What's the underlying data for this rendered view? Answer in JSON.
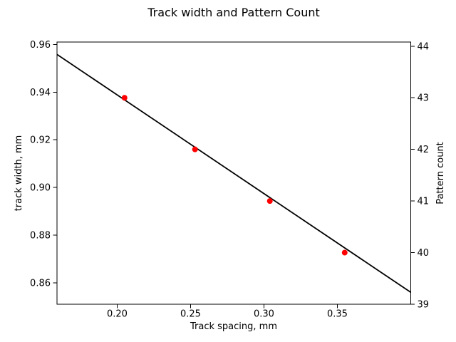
{
  "figure": {
    "background": "#ffffff"
  },
  "chart_data": {
    "type": "line",
    "title": "Track width and Pattern Count",
    "xlabel": "Track spacing, mm",
    "ylabel_left": "track width, mm",
    "ylabel_right": "Pattern count",
    "xlim": [
      0.159,
      0.4
    ],
    "ylim_left": [
      0.851,
      0.961
    ],
    "ylim_right": [
      39.0,
      44.08
    ],
    "x_ticks": [
      0.2,
      0.25,
      0.3,
      0.35
    ],
    "x_tick_labels": [
      "0.20",
      "0.25",
      "0.30",
      "0.35"
    ],
    "y_ticks_left": [
      0.86,
      0.88,
      0.9,
      0.92,
      0.94,
      0.96
    ],
    "y_tick_labels_left": [
      "0.86",
      "0.88",
      "0.90",
      "0.92",
      "0.94",
      "0.96"
    ],
    "y_ticks_right": [
      39,
      40,
      41,
      42,
      43,
      44
    ],
    "y_tick_labels_right": [
      "39",
      "40",
      "41",
      "42",
      "43",
      "44"
    ],
    "grid": false,
    "legend": null,
    "colors": {
      "line": "#000000",
      "markers": "#ff0000",
      "axes": "#000000"
    },
    "series": [
      {
        "name": "track-width-fit-line",
        "type": "line",
        "axis": "left",
        "color": "#000000",
        "x": [
          0.159,
          0.4
        ],
        "y": [
          0.9558,
          0.856
        ]
      },
      {
        "name": "pattern-count-points",
        "type": "scatter",
        "axis": "right",
        "color": "#ff0000",
        "x": [
          0.205,
          0.253,
          0.304,
          0.355
        ],
        "y": [
          43,
          42,
          41,
          40
        ]
      }
    ]
  }
}
